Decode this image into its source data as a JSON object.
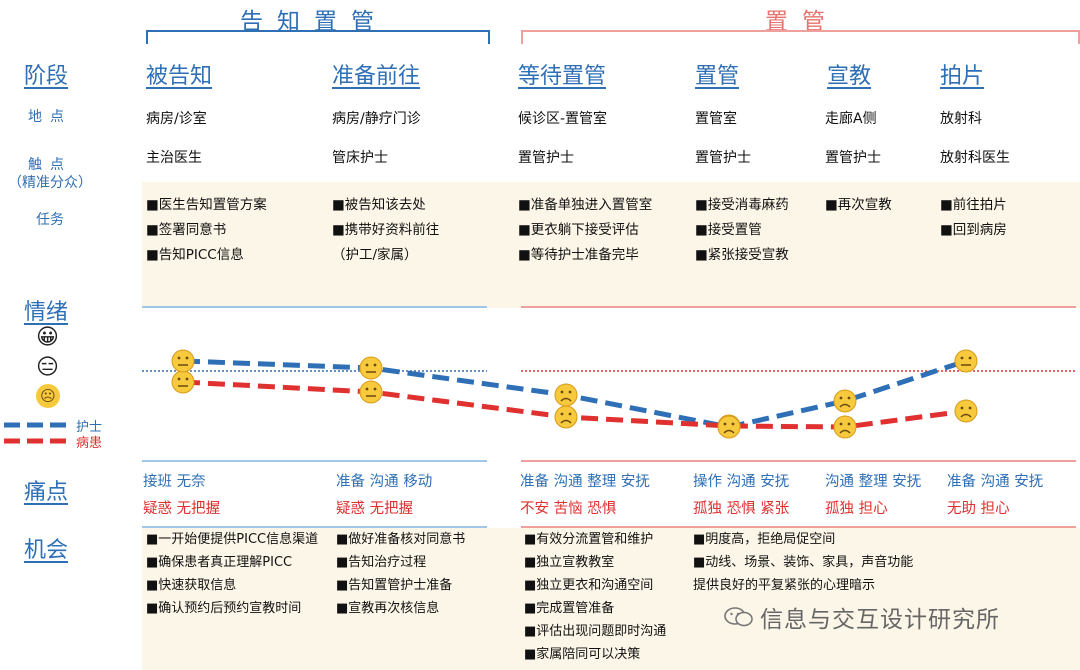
{
  "headers": {
    "left": "告知置管",
    "right": "置管"
  },
  "rows": {
    "stage": "阶段",
    "location": "地点",
    "touchpoint": "触点",
    "touchpoint_sub": "（精准分众）",
    "task": "任务",
    "emotion": "情绪",
    "pain": "痛点",
    "opportunity": "机会"
  },
  "emotion_icons": {
    "happy": "😀",
    "neutral": "😑",
    "sad": "☹"
  },
  "legend": {
    "nurse": "护士",
    "patient": "病患"
  },
  "colors": {
    "nurse": "#2e6fb6",
    "patient": "#e03030"
  },
  "stages": [
    {
      "name": "被告知",
      "location": "病房/诊室",
      "touch": "主治医生",
      "tasks": [
        "■医生告知置管方案",
        "■签署同意书",
        "■告知PICC信息"
      ],
      "pain_blue": "接班  无奈",
      "pain_red": "疑惑  无把握"
    },
    {
      "name": "准备前往",
      "location": "病房/静疗门诊",
      "touch": "管床护士",
      "tasks": [
        "■被告知该去处",
        "■携带好资料前往",
        "（护工/家属）"
      ],
      "pain_blue": "准备  沟通  移动",
      "pain_red": "疑惑  无把握"
    },
    {
      "name": "等待置管",
      "location": "候诊区-置管室",
      "touch": "置管护士",
      "tasks": [
        "■准备单独进入置管室",
        "■更衣躺下接受评估",
        "■等待护士准备完毕"
      ],
      "pain_blue": "准备  沟通  整理  安抚",
      "pain_red": "不安  苦恼  恐惧"
    },
    {
      "name": "置管",
      "location": "置管室",
      "touch": "置管护士",
      "tasks": [
        "■接受消毒麻药",
        "■接受置管",
        "■紧张接受宣教"
      ],
      "pain_blue": "操作  沟通    安抚",
      "pain_red": "孤独  恐惧  紧张"
    },
    {
      "name": "宣教",
      "location": "走廊A侧",
      "touch": "置管护士",
      "tasks": [
        "■再次宣教"
      ],
      "pain_blue": "沟通  整理  安抚",
      "pain_red": "孤独  担心"
    },
    {
      "name": "拍片",
      "location": "放射科",
      "touch": "放射科医生",
      "tasks": [
        "■前往拍片",
        "■回到病房"
      ],
      "pain_blue": "准备  沟通    安抚",
      "pain_red": "无助  担心"
    }
  ],
  "opportunities": [
    [
      "■一开始便提供PICC信息渠道",
      "■确保患者真正理解PICC",
      "■快速获取信息",
      "■确认预约后预约宣教时间"
    ],
    [
      "■做好准备核对同意书",
      "■告知治疗过程",
      "■告知置管护士准备",
      "■宣教再次核信息"
    ],
    [
      "■有效分流置管和维护",
      "■独立宣教教室",
      "■独立更衣和沟通空间",
      "■完成置管准备",
      "■评估出现问题即时沟通",
      "■家属陪同可以决策"
    ],
    [
      "■明度高，拒绝局促空间",
      "■动线、场景、装饰、家具，声音功能",
      "  提供良好的平复紧张的心理暗示"
    ]
  ],
  "emotion_chart": {
    "levels": [
      "happy",
      "neutral",
      "sad"
    ],
    "nurse": [
      "neutral",
      "neutral",
      "sad",
      "sad",
      "sad",
      "neutral"
    ],
    "patient": [
      "neutral",
      "neutral",
      "sad",
      "sad",
      "sad",
      "sad"
    ]
  },
  "watermark": "信息与交互设计研究所"
}
